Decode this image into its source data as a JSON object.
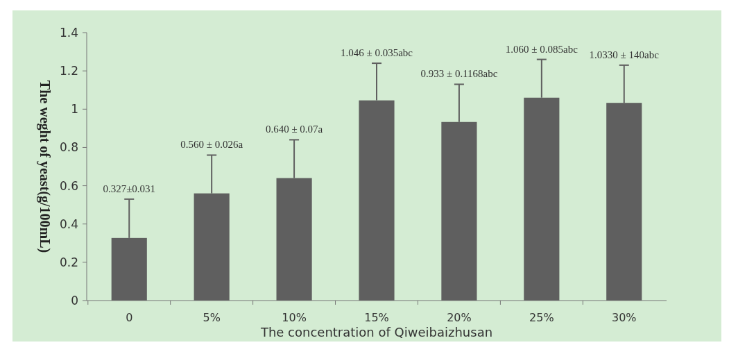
{
  "chart_data": {
    "type": "bar",
    "xlabel": "The concentration of Qiweibaizhusan",
    "ylabel": "The weght of yeast(g/100mL)",
    "categories": [
      "0",
      "5%",
      "10%",
      "15%",
      "20%",
      "25%",
      "30%"
    ],
    "values": [
      0.327,
      0.56,
      0.64,
      1.046,
      0.933,
      1.06,
      1.033
    ],
    "errors": [
      [
        0.327,
        0.53
      ],
      [
        0.56,
        0.76
      ],
      [
        0.64,
        0.84
      ],
      [
        1.046,
        1.24
      ],
      [
        0.933,
        1.13
      ],
      [
        1.06,
        1.26
      ],
      [
        1.033,
        1.23
      ]
    ],
    "annotations": [
      {
        "text": "0.327±0.031",
        "x": "0",
        "y": 0.53
      },
      {
        "text": "0.560 ± 0.026a",
        "x": "5%",
        "y": 0.76
      },
      {
        "text": "0.640 ± 0.07a",
        "x": "10%",
        "y": 0.84
      },
      {
        "text": "1.046 ± 0.035abc",
        "x": "15%",
        "y": 1.24
      },
      {
        "text": "0.933 ± 0.1168abc",
        "x": "20%",
        "y": 1.13
      },
      {
        "text": "1.060 ± 0.085abc",
        "x": "25%",
        "y": 1.26
      },
      {
        "text": "1.0330 ± 140abc",
        "x": "30%",
        "y": 1.23
      }
    ],
    "color": "#5f5f5f",
    "ylim": [
      0,
      1.4
    ],
    "yticks": [
      0,
      0.2,
      0.4,
      0.6,
      0.8,
      1,
      1.2,
      1.4
    ],
    "grid": false
  }
}
